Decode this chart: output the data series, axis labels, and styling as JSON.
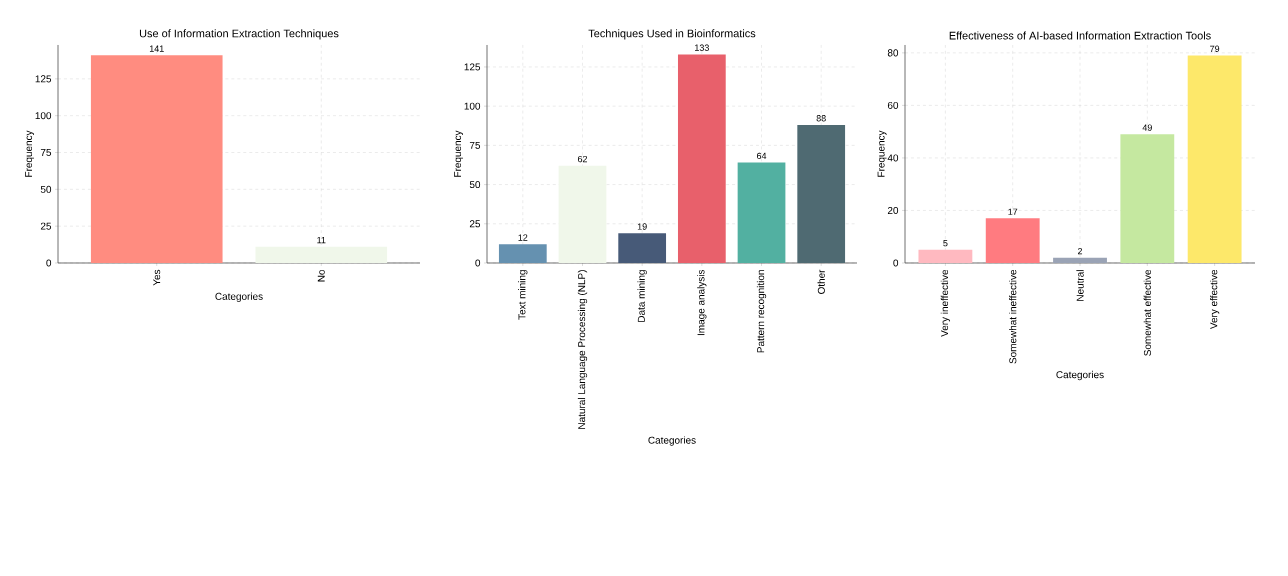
{
  "chart_data": [
    {
      "type": "bar",
      "title": "Use of Information Extraction Techniques",
      "xlabel": "Categories",
      "ylabel": "Frequency",
      "categories": [
        "Yes",
        "No"
      ],
      "values": [
        141,
        11
      ],
      "colors": [
        "#ff8c80",
        "#f0f7ea"
      ],
      "ylim": [
        0,
        148
      ],
      "yticks": [
        0,
        25,
        50,
        75,
        100,
        125
      ],
      "grid": true,
      "data_labels": true
    },
    {
      "type": "bar",
      "title": "Techniques Used in Bioinformatics",
      "xlabel": "Categories",
      "ylabel": "Frequency",
      "categories": [
        "Text mining",
        "Natural Language Processing (NLP)",
        "Data mining",
        "Image analysis",
        "Pattern recognition",
        "Other"
      ],
      "values": [
        12,
        62,
        19,
        133,
        64,
        88
      ],
      "colors": [
        "#6591b0",
        "#f0f7ea",
        "#475a78",
        "#e8606b",
        "#52b0a1",
        "#4f6a72"
      ],
      "ylim": [
        0,
        139
      ],
      "yticks": [
        0,
        25,
        50,
        75,
        100,
        125
      ],
      "grid": true,
      "data_labels": true
    },
    {
      "type": "bar",
      "title": "Effectiveness of AI-based Information Extraction Tools",
      "xlabel": "Categories",
      "ylabel": "Frequency",
      "categories": [
        "Very ineffective",
        "Somewhat ineffective",
        "Neutral",
        "Somewhat effective",
        "Very effective"
      ],
      "values": [
        5,
        17,
        2,
        49,
        79
      ],
      "colors": [
        "#ffb9c0",
        "#ff7b80",
        "#9aa3b5",
        "#c5e8a0",
        "#fde86a"
      ],
      "ylim": [
        0,
        83
      ],
      "yticks": [
        0,
        20,
        40,
        60,
        80
      ],
      "grid": true,
      "data_labels": true
    }
  ]
}
